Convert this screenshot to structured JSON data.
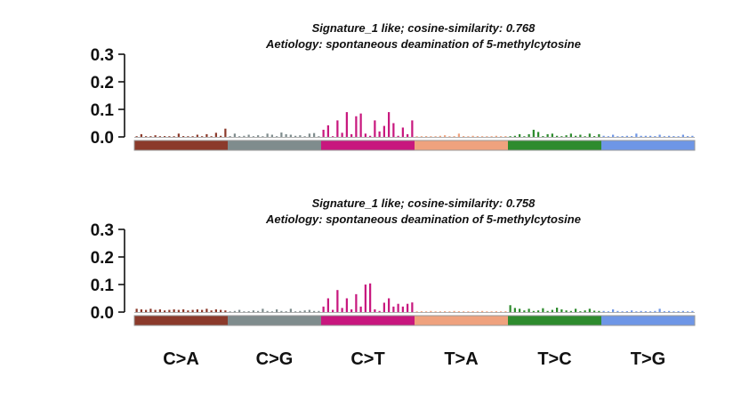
{
  "chart_data": {
    "type": "bar",
    "categories": [
      "C>A",
      "C>G",
      "C>T",
      "T>A",
      "T>C",
      "T>G"
    ],
    "category_colors": [
      "#8B3A2B",
      "#7F8C8D",
      "#C8177E",
      "#EFA27E",
      "#2E8B2E",
      "#6E96E6"
    ],
    "yticks": [
      "0.3",
      "0.2",
      "0.1",
      "0.0"
    ],
    "ylim": [
      0,
      0.3
    ],
    "panels": [
      {
        "title": "Signature_1 like; cosine-similarity: 0.768",
        "subtitle": "Aetiology: spontaneous deamination of 5-methylcytosine",
        "series": [
          {
            "values": [
              0.002,
              0.01,
              0.002,
              0.001,
              0.006,
              0.002,
              0.003,
              0.002,
              0.001,
              0.012,
              0.003,
              0.002,
              0.001,
              0.008,
              0.002,
              0.01,
              0.002,
              0.015,
              0.004,
              0.03
            ]
          },
          {
            "values": [
              0.003,
              0.012,
              0.002,
              0.004,
              0.008,
              0.002,
              0.006,
              0.002,
              0.012,
              0.008,
              0.002,
              0.016,
              0.01,
              0.008,
              0.004,
              0.006,
              0.002,
              0.012,
              0.014,
              0.002
            ]
          },
          {
            "values": [
              0.026,
              0.042,
              0.002,
              0.06,
              0.015,
              0.09,
              0.01,
              0.075,
              0.085,
              0.012,
              0.004,
              0.06,
              0.02,
              0.04,
              0.09,
              0.05,
              0.004,
              0.034,
              0.01,
              0.06
            ]
          },
          {
            "values": [
              0.002,
              0.001,
              0.003,
              0.002,
              0.001,
              0.004,
              0.006,
              0.002,
              0.003,
              0.012,
              0.003,
              0.001,
              0.004,
              0.003,
              0.002,
              0.002,
              0.001,
              0.004,
              0.002,
              0.003
            ]
          },
          {
            "values": [
              0.002,
              0.004,
              0.01,
              0.002,
              0.01,
              0.026,
              0.018,
              0.003,
              0.01,
              0.012,
              0.004,
              0.002,
              0.006,
              0.012,
              0.004,
              0.008,
              0.002,
              0.012,
              0.003,
              0.01
            ]
          },
          {
            "values": [
              0.004,
              0.002,
              0.008,
              0.002,
              0.003,
              0.004,
              0.003,
              0.012,
              0.004,
              0.004,
              0.004,
              0.003,
              0.008,
              0.002,
              0.004,
              0.003,
              0.002,
              0.008,
              0.003,
              0.004
            ]
          }
        ]
      },
      {
        "title": "Signature_1 like; cosine-similarity: 0.758",
        "subtitle": "Aetiology: spontaneous deamination of 5-methylcytosine",
        "series": [
          {
            "values": [
              0.012,
              0.01,
              0.008,
              0.012,
              0.008,
              0.01,
              0.006,
              0.008,
              0.01,
              0.008,
              0.01,
              0.006,
              0.008,
              0.01,
              0.008,
              0.012,
              0.006,
              0.01,
              0.008,
              0.006
            ]
          },
          {
            "values": [
              0.002,
              0.004,
              0.008,
              0.002,
              0.003,
              0.006,
              0.004,
              0.012,
              0.004,
              0.002,
              0.01,
              0.004,
              0.003,
              0.012,
              0.002,
              0.004,
              0.006,
              0.008,
              0.004,
              0.004
            ]
          },
          {
            "values": [
              0.02,
              0.05,
              0.008,
              0.08,
              0.015,
              0.05,
              0.01,
              0.065,
              0.02,
              0.1,
              0.104,
              0.01,
              0.004,
              0.034,
              0.05,
              0.02,
              0.03,
              0.02,
              0.03,
              0.035
            ]
          },
          {
            "values": [
              0.002,
              0.003,
              0.001,
              0.004,
              0.002,
              0.002,
              0.003,
              0.002,
              0.004,
              0.003,
              0.002,
              0.001,
              0.003,
              0.002,
              0.004,
              0.002,
              0.001,
              0.003,
              0.002,
              0.003
            ]
          },
          {
            "values": [
              0.025,
              0.015,
              0.012,
              0.006,
              0.012,
              0.004,
              0.006,
              0.014,
              0.004,
              0.008,
              0.016,
              0.01,
              0.006,
              0.004,
              0.012,
              0.003,
              0.006,
              0.012,
              0.005,
              0.004
            ]
          },
          {
            "values": [
              0.004,
              0.002,
              0.01,
              0.004,
              0.002,
              0.003,
              0.006,
              0.002,
              0.004,
              0.003,
              0.002,
              0.004,
              0.012,
              0.003,
              0.004,
              0.002,
              0.003,
              0.004,
              0.002,
              0.004
            ]
          }
        ]
      }
    ]
  }
}
